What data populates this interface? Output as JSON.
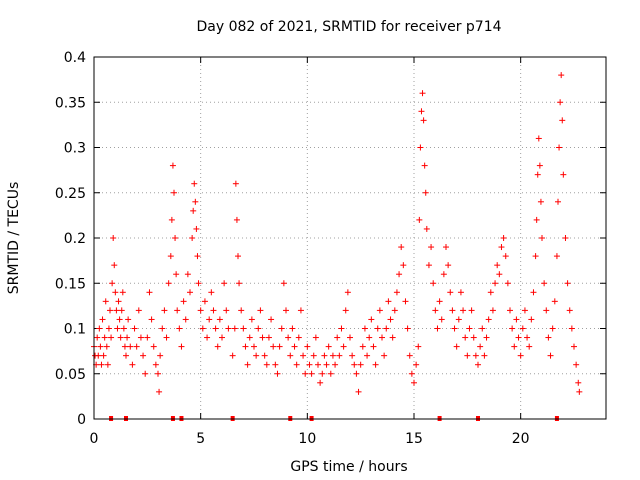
{
  "chart_data": {
    "type": "scatter",
    "title": "Day 082 of 2021, SRMTID for receiver p714",
    "xlabel": "GPS time / hours",
    "ylabel": "SRMTID / TECUs",
    "xlim": [
      0,
      24
    ],
    "ylim": [
      0,
      0.4
    ],
    "x_ticks": [
      0,
      5,
      10,
      15,
      20
    ],
    "x_tick_labels": [
      "0",
      "5",
      "10",
      "15",
      "20"
    ],
    "y_ticks": [
      0,
      0.05,
      0.1,
      0.15,
      0.2,
      0.25,
      0.3,
      0.35,
      0.4
    ],
    "y_tick_labels": [
      "0",
      "0.05",
      "0.1",
      "0.15",
      "0.2",
      "0.25",
      "0.3",
      "0.35",
      "0.4"
    ],
    "grid": true,
    "marker": "+",
    "color": "#ff0000",
    "series": [
      {
        "name": "SRMTID",
        "points": [
          [
            0.0,
            0.08
          ],
          [
            0.05,
            0.07
          ],
          [
            0.1,
            0.06
          ],
          [
            0.15,
            0.09
          ],
          [
            0.2,
            0.07
          ],
          [
            0.25,
            0.1
          ],
          [
            0.3,
            0.08
          ],
          [
            0.35,
            0.06
          ],
          [
            0.4,
            0.11
          ],
          [
            0.45,
            0.07
          ],
          [
            0.5,
            0.09
          ],
          [
            0.55,
            0.13
          ],
          [
            0.6,
            0.08
          ],
          [
            0.65,
            0.06
          ],
          [
            0.7,
            0.1
          ],
          [
            0.75,
            0.12
          ],
          [
            0.8,
            0.09
          ],
          [
            0.85,
            0.15
          ],
          [
            0.9,
            0.2
          ],
          [
            0.95,
            0.17
          ],
          [
            1.0,
            0.14
          ],
          [
            1.05,
            0.12
          ],
          [
            1.1,
            0.1
          ],
          [
            1.15,
            0.13
          ],
          [
            1.2,
            0.11
          ],
          [
            1.25,
            0.09
          ],
          [
            1.3,
            0.12
          ],
          [
            1.35,
            0.14
          ],
          [
            1.4,
            0.1
          ],
          [
            1.45,
            0.08
          ],
          [
            1.5,
            0.07
          ],
          [
            1.55,
            0.09
          ],
          [
            1.6,
            0.11
          ],
          [
            1.7,
            0.08
          ],
          [
            1.8,
            0.06
          ],
          [
            1.9,
            0.1
          ],
          [
            2.0,
            0.08
          ],
          [
            2.1,
            0.12
          ],
          [
            2.2,
            0.09
          ],
          [
            2.3,
            0.07
          ],
          [
            2.4,
            0.05
          ],
          [
            2.5,
            0.09
          ],
          [
            2.6,
            0.14
          ],
          [
            2.7,
            0.11
          ],
          [
            2.8,
            0.08
          ],
          [
            2.9,
            0.06
          ],
          [
            3.0,
            0.05
          ],
          [
            3.05,
            0.03
          ],
          [
            3.1,
            0.07
          ],
          [
            3.2,
            0.1
          ],
          [
            3.3,
            0.12
          ],
          [
            3.4,
            0.09
          ],
          [
            3.5,
            0.15
          ],
          [
            3.6,
            0.18
          ],
          [
            3.65,
            0.22
          ],
          [
            3.7,
            0.28
          ],
          [
            3.75,
            0.25
          ],
          [
            3.8,
            0.2
          ],
          [
            3.85,
            0.16
          ],
          [
            3.9,
            0.12
          ],
          [
            4.0,
            0.1
          ],
          [
            4.1,
            0.08
          ],
          [
            4.2,
            0.13
          ],
          [
            4.3,
            0.11
          ],
          [
            4.4,
            0.16
          ],
          [
            4.5,
            0.14
          ],
          [
            4.6,
            0.2
          ],
          [
            4.65,
            0.23
          ],
          [
            4.7,
            0.26
          ],
          [
            4.75,
            0.24
          ],
          [
            4.8,
            0.21
          ],
          [
            4.85,
            0.18
          ],
          [
            4.9,
            0.15
          ],
          [
            5.0,
            0.12
          ],
          [
            5.1,
            0.1
          ],
          [
            5.2,
            0.13
          ],
          [
            5.3,
            0.09
          ],
          [
            5.4,
            0.11
          ],
          [
            5.5,
            0.14
          ],
          [
            5.6,
            0.12
          ],
          [
            5.7,
            0.1
          ],
          [
            5.8,
            0.08
          ],
          [
            5.9,
            0.11
          ],
          [
            6.0,
            0.09
          ],
          [
            6.1,
            0.15
          ],
          [
            6.2,
            0.12
          ],
          [
            6.3,
            0.1
          ],
          [
            6.5,
            0.07
          ],
          [
            6.6,
            0.1
          ],
          [
            6.65,
            0.26
          ],
          [
            6.7,
            0.22
          ],
          [
            6.75,
            0.18
          ],
          [
            6.8,
            0.15
          ],
          [
            6.9,
            0.12
          ],
          [
            7.0,
            0.1
          ],
          [
            7.1,
            0.08
          ],
          [
            7.2,
            0.06
          ],
          [
            7.3,
            0.09
          ],
          [
            7.4,
            0.11
          ],
          [
            7.5,
            0.08
          ],
          [
            7.6,
            0.07
          ],
          [
            7.7,
            0.1
          ],
          [
            7.8,
            0.12
          ],
          [
            7.9,
            0.09
          ],
          [
            8.0,
            0.07
          ],
          [
            8.1,
            0.06
          ],
          [
            8.2,
            0.09
          ],
          [
            8.3,
            0.11
          ],
          [
            8.4,
            0.08
          ],
          [
            8.5,
            0.06
          ],
          [
            8.6,
            0.05
          ],
          [
            8.7,
            0.08
          ],
          [
            8.8,
            0.1
          ],
          [
            8.9,
            0.15
          ],
          [
            9.0,
            0.12
          ],
          [
            9.1,
            0.09
          ],
          [
            9.2,
            0.07
          ],
          [
            9.3,
            0.1
          ],
          [
            9.4,
            0.08
          ],
          [
            9.5,
            0.06
          ],
          [
            9.6,
            0.09
          ],
          [
            9.7,
            0.12
          ],
          [
            9.8,
            0.07
          ],
          [
            9.9,
            0.05
          ],
          [
            10.0,
            0.08
          ],
          [
            10.1,
            0.06
          ],
          [
            10.2,
            0.05
          ],
          [
            10.3,
            0.07
          ],
          [
            10.4,
            0.09
          ],
          [
            10.5,
            0.06
          ],
          [
            10.6,
            0.04
          ],
          [
            10.7,
            0.05
          ],
          [
            10.8,
            0.07
          ],
          [
            10.9,
            0.06
          ],
          [
            11.0,
            0.08
          ],
          [
            11.1,
            0.05
          ],
          [
            11.2,
            0.07
          ],
          [
            11.3,
            0.06
          ],
          [
            11.4,
            0.09
          ],
          [
            11.5,
            0.07
          ],
          [
            11.6,
            0.1
          ],
          [
            11.7,
            0.08
          ],
          [
            11.8,
            0.12
          ],
          [
            11.9,
            0.14
          ],
          [
            12.0,
            0.09
          ],
          [
            12.1,
            0.07
          ],
          [
            12.2,
            0.06
          ],
          [
            12.3,
            0.05
          ],
          [
            12.4,
            0.03
          ],
          [
            12.5,
            0.06
          ],
          [
            12.6,
            0.08
          ],
          [
            12.7,
            0.1
          ],
          [
            12.8,
            0.07
          ],
          [
            12.9,
            0.09
          ],
          [
            13.0,
            0.11
          ],
          [
            13.1,
            0.08
          ],
          [
            13.2,
            0.06
          ],
          [
            13.3,
            0.1
          ],
          [
            13.4,
            0.12
          ],
          [
            13.5,
            0.09
          ],
          [
            13.6,
            0.07
          ],
          [
            13.7,
            0.1
          ],
          [
            13.8,
            0.13
          ],
          [
            13.9,
            0.11
          ],
          [
            14.0,
            0.09
          ],
          [
            14.1,
            0.12
          ],
          [
            14.2,
            0.14
          ],
          [
            14.3,
            0.16
          ],
          [
            14.4,
            0.19
          ],
          [
            14.5,
            0.17
          ],
          [
            14.6,
            0.13
          ],
          [
            14.7,
            0.1
          ],
          [
            14.8,
            0.07
          ],
          [
            14.9,
            0.05
          ],
          [
            15.0,
            0.04
          ],
          [
            15.1,
            0.06
          ],
          [
            15.2,
            0.08
          ],
          [
            15.25,
            0.22
          ],
          [
            15.3,
            0.3
          ],
          [
            15.35,
            0.34
          ],
          [
            15.4,
            0.36
          ],
          [
            15.45,
            0.33
          ],
          [
            15.5,
            0.28
          ],
          [
            15.55,
            0.25
          ],
          [
            15.6,
            0.21
          ],
          [
            15.7,
            0.17
          ],
          [
            15.8,
            0.19
          ],
          [
            15.9,
            0.15
          ],
          [
            16.0,
            0.12
          ],
          [
            16.1,
            0.1
          ],
          [
            16.2,
            0.13
          ],
          [
            16.3,
            0.11
          ],
          [
            16.4,
            0.16
          ],
          [
            16.5,
            0.19
          ],
          [
            16.6,
            0.17
          ],
          [
            16.7,
            0.14
          ],
          [
            16.8,
            0.12
          ],
          [
            16.9,
            0.1
          ],
          [
            17.0,
            0.08
          ],
          [
            17.1,
            0.11
          ],
          [
            17.2,
            0.14
          ],
          [
            17.3,
            0.12
          ],
          [
            17.4,
            0.09
          ],
          [
            17.5,
            0.07
          ],
          [
            17.6,
            0.1
          ],
          [
            17.7,
            0.12
          ],
          [
            17.8,
            0.09
          ],
          [
            17.9,
            0.07
          ],
          [
            18.0,
            0.06
          ],
          [
            18.1,
            0.08
          ],
          [
            18.2,
            0.1
          ],
          [
            18.3,
            0.07
          ],
          [
            18.4,
            0.09
          ],
          [
            18.5,
            0.11
          ],
          [
            18.6,
            0.14
          ],
          [
            18.7,
            0.12
          ],
          [
            18.8,
            0.15
          ],
          [
            18.9,
            0.17
          ],
          [
            19.0,
            0.16
          ],
          [
            19.1,
            0.19
          ],
          [
            19.2,
            0.2
          ],
          [
            19.3,
            0.18
          ],
          [
            19.4,
            0.15
          ],
          [
            19.5,
            0.12
          ],
          [
            19.6,
            0.1
          ],
          [
            19.7,
            0.08
          ],
          [
            19.8,
            0.11
          ],
          [
            19.9,
            0.09
          ],
          [
            20.0,
            0.07
          ],
          [
            20.1,
            0.1
          ],
          [
            20.2,
            0.12
          ],
          [
            20.3,
            0.09
          ],
          [
            20.4,
            0.08
          ],
          [
            20.5,
            0.11
          ],
          [
            20.6,
            0.14
          ],
          [
            20.7,
            0.18
          ],
          [
            20.75,
            0.22
          ],
          [
            20.8,
            0.27
          ],
          [
            20.85,
            0.31
          ],
          [
            20.9,
            0.28
          ],
          [
            20.95,
            0.24
          ],
          [
            21.0,
            0.2
          ],
          [
            21.1,
            0.15
          ],
          [
            21.2,
            0.12
          ],
          [
            21.3,
            0.09
          ],
          [
            21.4,
            0.07
          ],
          [
            21.5,
            0.1
          ],
          [
            21.6,
            0.13
          ],
          [
            21.7,
            0.18
          ],
          [
            21.75,
            0.24
          ],
          [
            21.8,
            0.3
          ],
          [
            21.85,
            0.35
          ],
          [
            21.9,
            0.38
          ],
          [
            21.95,
            0.33
          ],
          [
            22.0,
            0.27
          ],
          [
            22.1,
            0.2
          ],
          [
            22.2,
            0.15
          ],
          [
            22.3,
            0.12
          ],
          [
            22.4,
            0.1
          ],
          [
            22.5,
            0.08
          ],
          [
            22.6,
            0.06
          ],
          [
            22.7,
            0.04
          ],
          [
            22.75,
            0.03
          ]
        ]
      }
    ],
    "baseline_markers": [
      0.8,
      1.5,
      3.7,
      4.1,
      6.5,
      9.2,
      10.2,
      16.2,
      18.0,
      21.7
    ]
  }
}
